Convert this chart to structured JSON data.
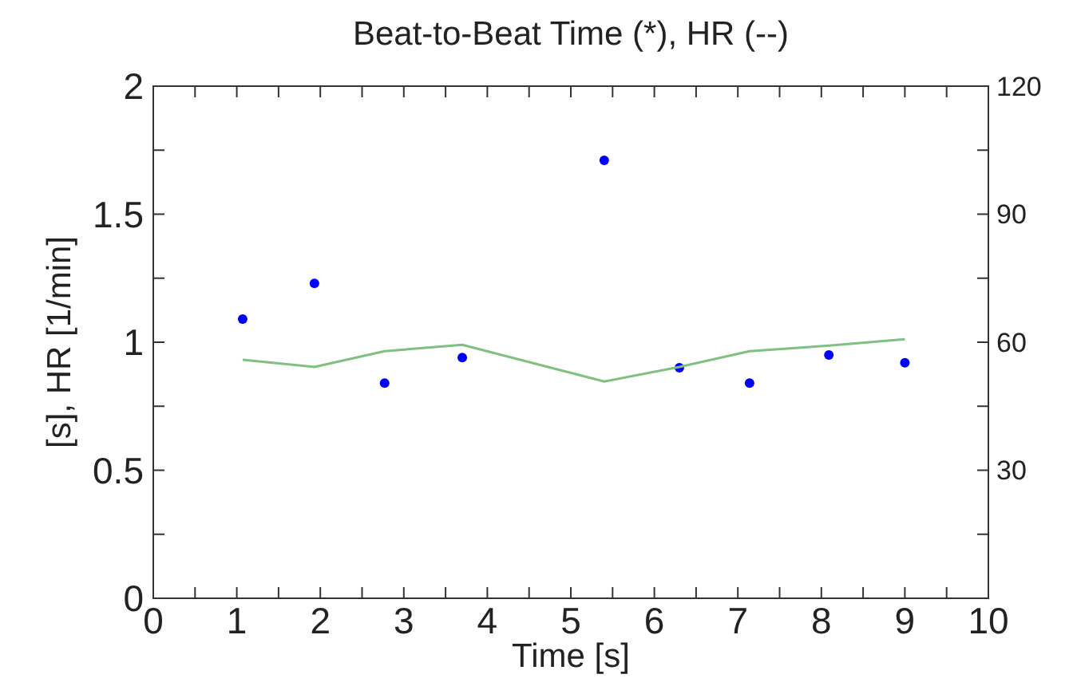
{
  "chart_data": {
    "type": "scatter",
    "title": "Beat-to-Beat Time (*), HR (--)",
    "xlabel": "Time [s]",
    "ylabel": "[s], HR [1/min]",
    "xlim": [
      0,
      10
    ],
    "xticks": [
      0,
      {
        "value": 0.5,
        "label": null
      },
      1,
      {
        "value": 1.5,
        "label": null
      },
      2,
      {
        "value": 2.5,
        "label": null
      },
      3,
      {
        "value": 3.5,
        "label": null
      },
      4,
      {
        "value": 4.5,
        "label": null
      },
      5,
      {
        "value": 5.5,
        "label": null
      },
      6,
      {
        "value": 6.5,
        "label": null
      },
      7,
      {
        "value": 7.5,
        "label": null
      },
      8,
      {
        "value": 8.5,
        "label": null
      },
      9,
      {
        "value": 9.5,
        "label": null
      },
      10
    ],
    "ylim": [
      0,
      2
    ],
    "yticks": [
      0,
      {
        "value": 0.25,
        "label": null
      },
      0.5,
      {
        "value": 0.75,
        "label": null
      },
      1,
      {
        "value": 1.25,
        "label": null
      },
      1.5,
      {
        "value": 1.75,
        "label": null
      },
      2
    ],
    "y2lim": [
      0,
      120
    ],
    "y2ticks": [
      {
        "value": 0,
        "label": null
      },
      {
        "value": 15,
        "label": null
      },
      30,
      {
        "value": 45,
        "label": null
      },
      60,
      {
        "value": 75,
        "label": null
      },
      90,
      {
        "value": 105,
        "label": null
      },
      120
    ],
    "grid": false,
    "series": [
      {
        "color": "#0000ff",
        "marker": "circle",
        "x": [
          1.07,
          1.93,
          2.77,
          3.7,
          5.4,
          6.3,
          7.14,
          8.09,
          9.0
        ],
        "values": [
          1.09,
          1.23,
          0.84,
          0.94,
          1.71,
          0.9,
          0.84,
          0.95,
          0.92
        ]
      },
      {
        "type": "line",
        "axis": "y2",
        "color": "#80c080",
        "marker": "none",
        "line_style": "solid",
        "x": [
          1.07,
          1.93,
          2.77,
          3.7,
          5.4,
          6.3,
          7.14,
          8.09,
          9.0
        ],
        "values": [
          55.9,
          54.2,
          57.9,
          59.4,
          50.8,
          54.2,
          57.9,
          59.2,
          60.7
        ]
      }
    ]
  }
}
